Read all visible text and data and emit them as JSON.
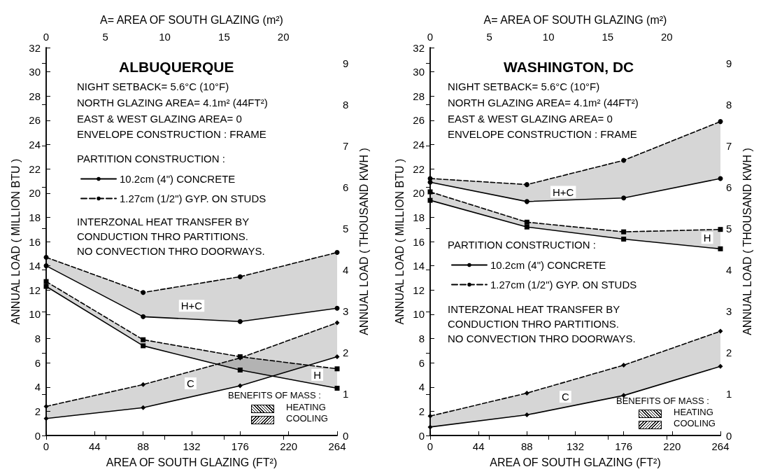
{
  "chart_data": [
    {
      "type": "line",
      "title": "ALBUQUERQUE",
      "xlabel": "AREA OF SOUTH GLAZING (FT²)",
      "ylabel": "ANNUAL LOAD ( MILLION BTU )",
      "y2label": "ANNUAL LOAD ( THOUSAND KWH )",
      "x2label": "A= AREA OF SOUTH GLAZING (m²)",
      "legend_title": "PARTITION CONSTRUCTION :",
      "annotations": [
        "NIGHT SETBACK= 5.6°C (10°F)",
        "NORTH GLAZING AREA= 4.1m² (44FT²)",
        "EAST & WEST GLAZING AREA= 0",
        "ENVELOPE CONSTRUCTION : FRAME",
        "INTERZONAL HEAT TRANSFER BY",
        "CONDUCTION THRO PARTITIONS.",
        "NO CONVECTION THRO DOORWAYS.",
        {
          "text": "H+C",
          "x": 132,
          "y": 10.7
        },
        {
          "text": "C",
          "x": 131,
          "y": 4.3
        },
        {
          "text": "H",
          "x": 246,
          "y": 5
        },
        "BENEFITS OF MASS :",
        "HEATING",
        "COOLING"
      ],
      "x": [
        0,
        88,
        176,
        264
      ],
      "series": [
        {
          "name": "10.2cm (4\") CONCRETE",
          "color": "#000000",
          "values": [
            14,
            9.8,
            9.4,
            10.5
          ],
          "line_style": "solid",
          "marker": "circle"
        },
        {
          "name": "1.27cm (1/2\") GYP. ON STUDS",
          "color": "#000000",
          "values": [
            14.7,
            11.8,
            13.1,
            15.1
          ],
          "line_style": "dashed",
          "marker": "circle",
          "lower": [
            14,
            9.8,
            9.4,
            10.5
          ],
          "upper": [
            14.7,
            11.8,
            13.1,
            15.1
          ]
        },
        {
          "color": "#000000",
          "values": [
            12.3,
            7.4,
            5.4,
            3.9
          ],
          "line_style": "solid",
          "marker": "square"
        },
        {
          "color": "#010101",
          "values": [
            12.7,
            7.9,
            6.5,
            5.5
          ],
          "line_style": "dashed",
          "marker": "square",
          "lower": [
            12.3,
            7.4,
            5.4,
            3.9
          ],
          "upper": [
            12.7,
            7.9,
            6.5,
            5.5
          ]
        },
        {
          "color": "#000000",
          "values": [
            1.4,
            2.3,
            4.1,
            6.5
          ],
          "line_style": "solid",
          "marker": "diamond"
        },
        {
          "color": "#020202",
          "values": [
            2.4,
            4.2,
            6.4,
            9.3
          ],
          "line_style": "dashed",
          "marker": "diamond",
          "lower": [
            1.4,
            2.3,
            4.1,
            6.5
          ],
          "upper": [
            2.4,
            4.2,
            6.4,
            9.3
          ]
        }
      ],
      "xlim": [
        0,
        264
      ],
      "xticks": [
        0,
        44,
        88,
        132,
        176,
        220,
        264
      ],
      "ylim": [
        0,
        32
      ],
      "yticks": [
        0,
        2,
        4,
        6,
        8,
        10,
        12,
        14,
        16,
        18,
        20,
        22,
        24,
        26,
        28,
        30,
        32
      ],
      "y2lim": [
        0,
        9.378
      ],
      "y2ticks": [
        0,
        1,
        2,
        3,
        4,
        5,
        6,
        7,
        8,
        9
      ],
      "x2lim": [
        0,
        24.53
      ],
      "x2ticks": [
        0,
        5,
        10,
        15,
        20
      ],
      "legend": "top left"
    },
    {
      "type": "line",
      "title": "WASHINGTON, DC",
      "xlabel": "AREA OF SOUTH GLAZING (FT²)",
      "ylabel": "ANNUAL LOAD ( MILLION BTU )",
      "y2label": "ANNUAL LOAD ( THOUSAND KWH )",
      "x2label": "A= AREA OF SOUTH GLAZING (m²)",
      "legend_title": "PARTITION CONSTRUCTION :",
      "annotations": [
        "NIGHT SETBACK= 5.6°C (10°F)",
        "NORTH GLAZING AREA= 4.1m² (44FT²)",
        "EAST & WEST GLAZING AREA= 0",
        "ENVELOPE CONSTRUCTION : FRAME",
        "INTERZONAL HEAT TRANSFER BY",
        "CONDUCTION THRO PARTITIONS.",
        "NO CONVECTION THRO DOORWAYS.",
        {
          "text": "H+C",
          "x": 121,
          "y": 20.1
        },
        {
          "text": "C",
          "x": 123,
          "y": 3.2
        },
        {
          "text": "H",
          "x": 252,
          "y": 16.3
        },
        "BENEFITS OF MASS :",
        "HEATING",
        "COOLING"
      ],
      "x": [
        0,
        88,
        176,
        264
      ],
      "series": [
        {
          "name": "10.2cm (4\") CONCRETE",
          "color": "#000000",
          "values": [
            20.9,
            19.3,
            19.6,
            21.2
          ],
          "line_style": "solid",
          "marker": "circle"
        },
        {
          "name": "1.27cm (1/2\") GYP. ON STUDS",
          "color": "#000000",
          "values": [
            21.2,
            20.7,
            22.7,
            25.9
          ],
          "line_style": "dashed",
          "marker": "circle",
          "lower": [
            20.9,
            19.3,
            19.6,
            21.2
          ],
          "upper": [
            21.2,
            20.7,
            22.7,
            25.9
          ]
        },
        {
          "color": "#000000",
          "values": [
            19.4,
            17.2,
            16.2,
            15.4
          ],
          "line_style": "solid",
          "marker": "square"
        },
        {
          "color": "#010101",
          "values": [
            20.1,
            17.6,
            16.8,
            17
          ],
          "line_style": "dashed",
          "marker": "square",
          "lower": [
            19.4,
            17.2,
            16.2,
            15.4
          ],
          "upper": [
            20.1,
            17.6,
            16.8,
            17
          ]
        },
        {
          "color": "#000000",
          "values": [
            0.7,
            1.7,
            3.3,
            5.7
          ],
          "line_style": "solid",
          "marker": "diamond"
        },
        {
          "color": "#020202",
          "values": [
            1.6,
            3.5,
            5.8,
            8.6
          ],
          "line_style": "dashed",
          "marker": "diamond",
          "lower": [
            0.7,
            1.7,
            3.3,
            5.7
          ],
          "upper": [
            1.6,
            3.5,
            5.8,
            8.6
          ]
        }
      ],
      "xlim": [
        0,
        264
      ],
      "xticks": [
        0,
        44,
        88,
        132,
        176,
        220,
        264
      ],
      "ylim": [
        0,
        32
      ],
      "yticks": [
        0,
        2,
        4,
        6,
        8,
        10,
        12,
        14,
        16,
        18,
        20,
        22,
        24,
        26,
        28,
        30,
        32
      ],
      "y2lim": [
        0,
        9.378
      ],
      "y2ticks": [
        0,
        1,
        2,
        3,
        4,
        5,
        6,
        7,
        8,
        9
      ],
      "x2lim": [
        0,
        24.53
      ],
      "x2ticks": [
        0,
        5,
        10,
        15,
        20
      ],
      "legend": "left"
    }
  ]
}
